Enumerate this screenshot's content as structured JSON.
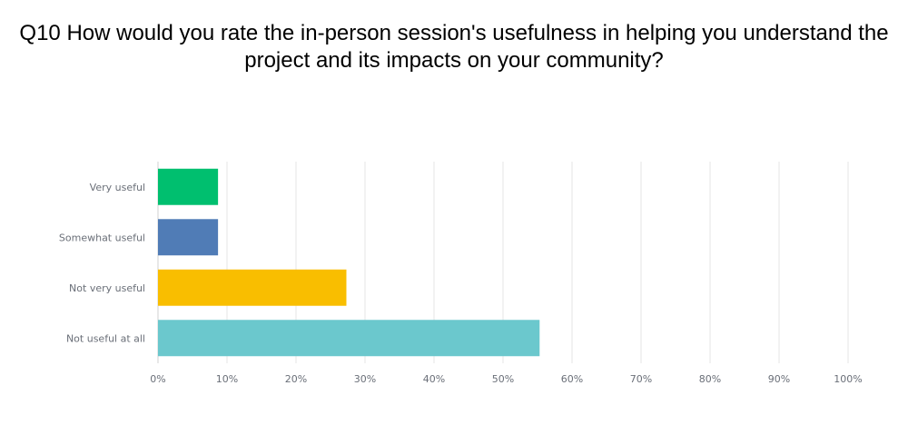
{
  "chart_data": {
    "type": "bar",
    "orientation": "horizontal",
    "title": "Q10 How would you rate the in-person session's usefulness in helping you understand the project and its impacts on your community?",
    "categories": [
      "Very useful",
      "Somewhat useful",
      "Not very useful",
      "Not useful at all"
    ],
    "values": [
      8.7,
      8.7,
      27.3,
      55.3
    ],
    "colors": [
      "#00bf6f",
      "#507cb6",
      "#f9be00",
      "#6bc8cd"
    ],
    "xlim": [
      0,
      100
    ],
    "xticks": [
      "0%",
      "10%",
      "20%",
      "30%",
      "40%",
      "50%",
      "60%",
      "70%",
      "80%",
      "90%",
      "100%"
    ],
    "grid": true,
    "xlabel": "",
    "ylabel": ""
  }
}
